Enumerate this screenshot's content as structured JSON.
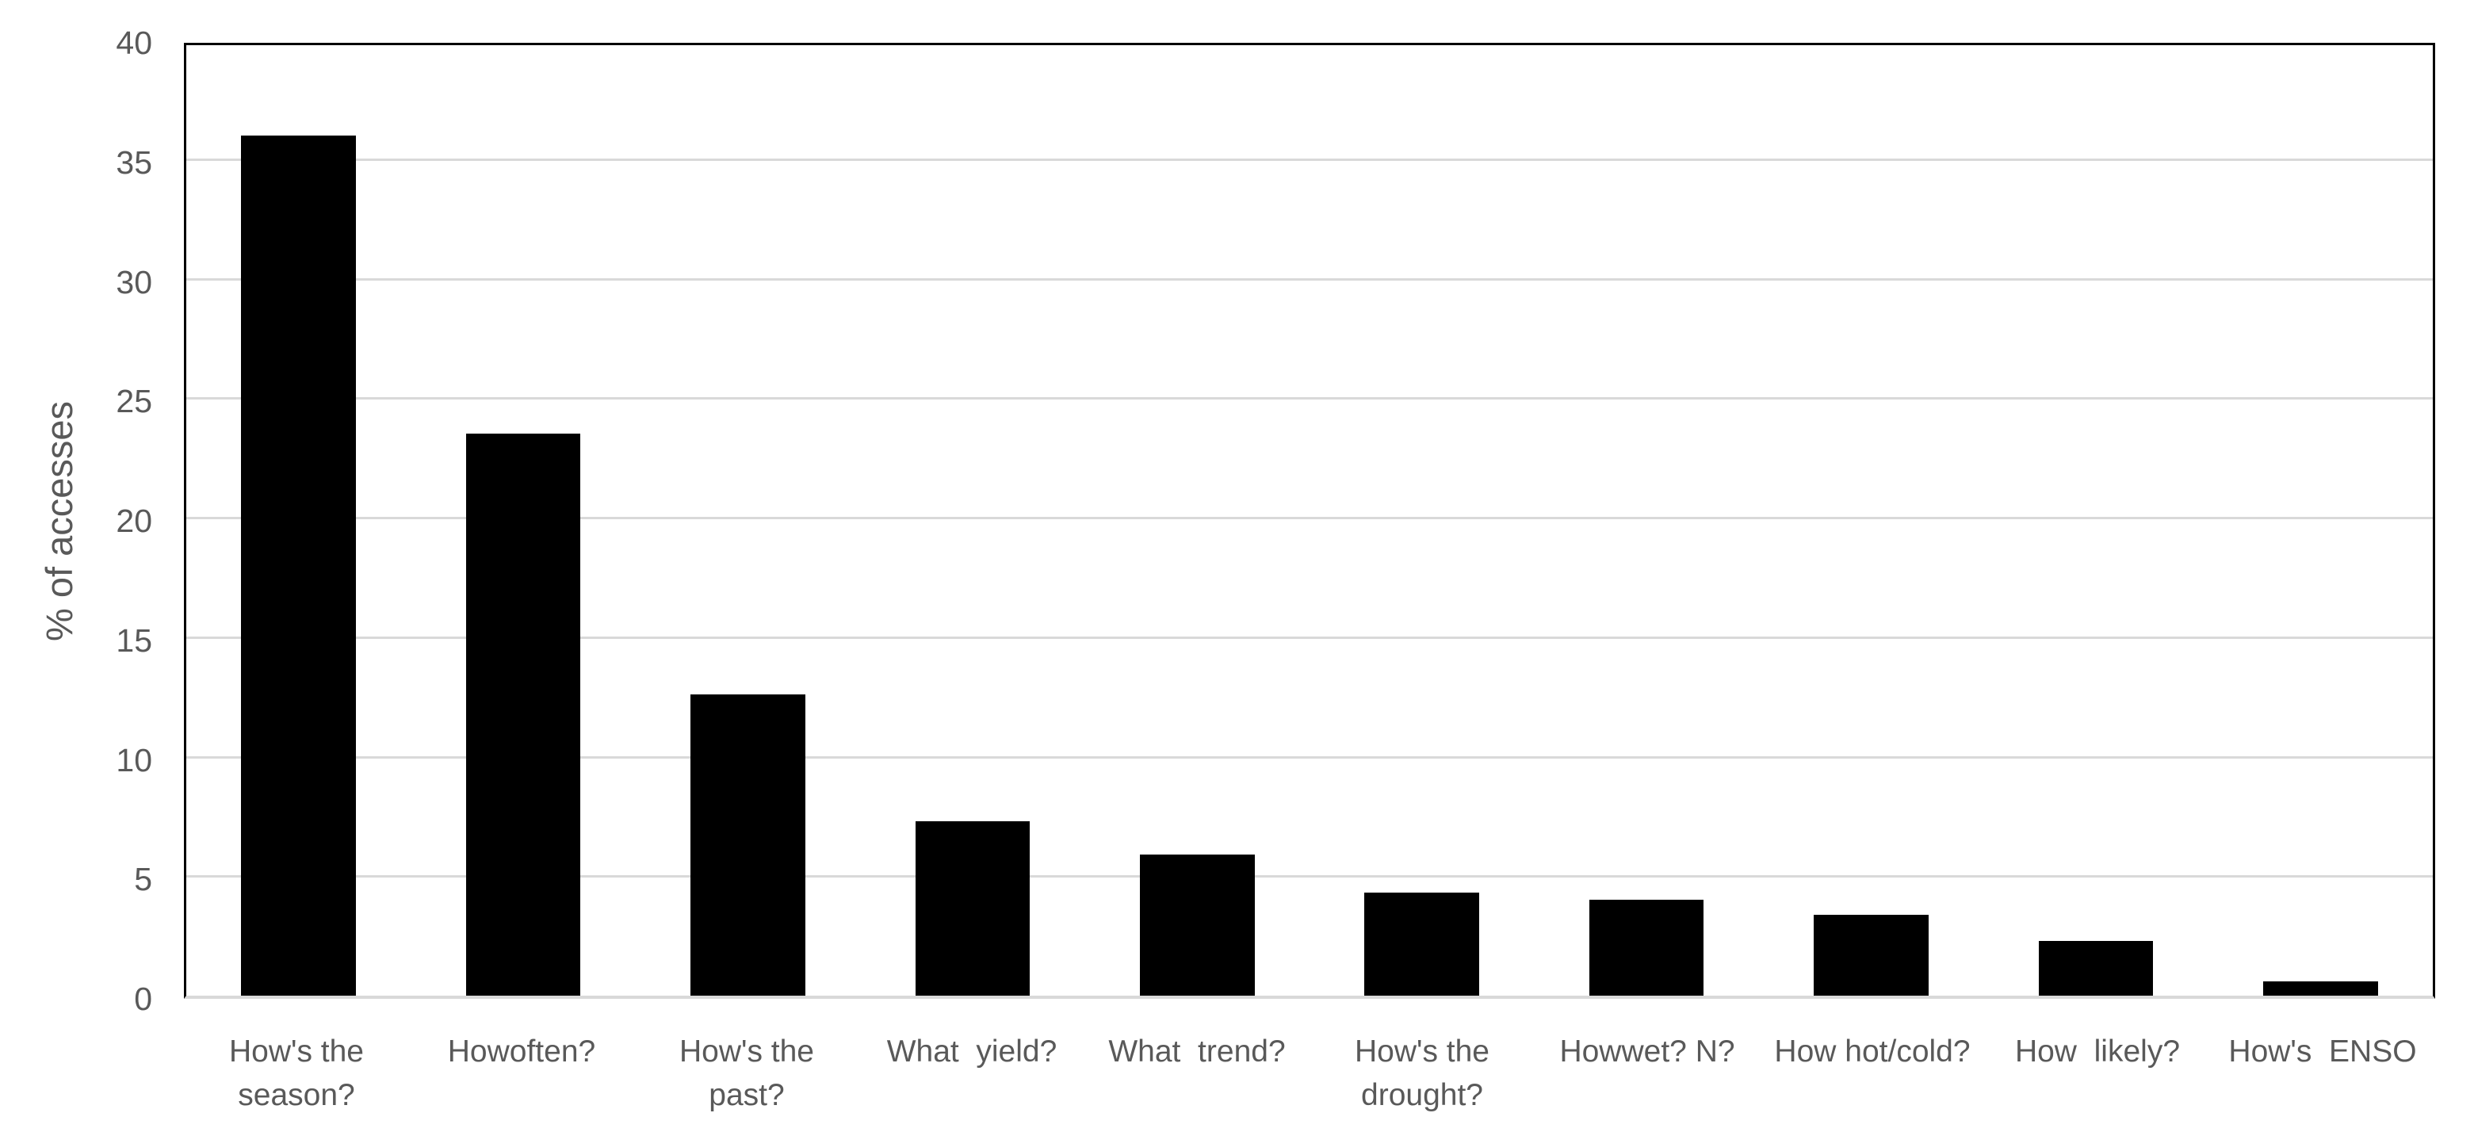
{
  "colors": {
    "bar": "#000000",
    "gridline": "#d9d9d9",
    "axis_border": "#000000",
    "text": "#595959",
    "background": "#ffffff"
  },
  "chart_data": {
    "type": "bar",
    "title": "",
    "xlabel": "",
    "ylabel": "% of accesses",
    "ylim": [
      0,
      40
    ],
    "ytick_step": 5,
    "grid": true,
    "legend": false,
    "bar_color": "#000000",
    "categories": [
      "How's the\nseason?",
      "Howoften?",
      "How's the\npast?",
      "What  yield?",
      "What  trend?",
      "How's the\ndrought?",
      "Howwet? N?",
      "How hot/cold?",
      "How  likely?",
      "How's  ENSO"
    ],
    "values": [
      36,
      23.5,
      12.6,
      7.3,
      5.9,
      4.3,
      4.0,
      3.4,
      2.3,
      0.6
    ]
  }
}
